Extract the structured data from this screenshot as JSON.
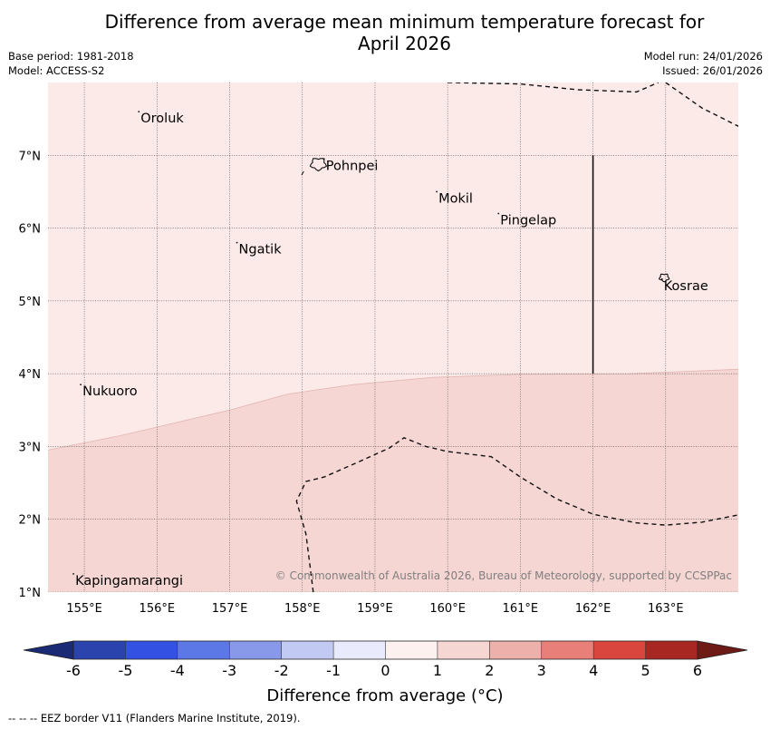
{
  "header": {
    "title_line1": "Difference from average mean minimum temperature forecast for",
    "title_line2": "April 2026",
    "base_period": "Base period: 1981-2018",
    "model": "Model: ACCESS-S2",
    "model_run": "Model run: 24/01/2026",
    "issued": "Issued: 26/01/2026"
  },
  "map": {
    "lon_range": [
      154.5,
      164.0
    ],
    "lat_range": [
      1.0,
      8.0
    ],
    "lat_labels": [
      {
        "lat": 7,
        "text": "7°N"
      },
      {
        "lat": 6,
        "text": "6°N"
      },
      {
        "lat": 5,
        "text": "5°N"
      },
      {
        "lat": 4,
        "text": "4°N"
      },
      {
        "lat": 3,
        "text": "3°N"
      },
      {
        "lat": 2,
        "text": "2°N"
      },
      {
        "lat": 1,
        "text": "1°N"
      }
    ],
    "lon_labels": [
      {
        "lon": 155,
        "text": "155°E"
      },
      {
        "lon": 156,
        "text": "156°E"
      },
      {
        "lon": 157,
        "text": "157°E"
      },
      {
        "lon": 158,
        "text": "158°E"
      },
      {
        "lon": 159,
        "text": "159°E"
      },
      {
        "lon": 160,
        "text": "160°E"
      },
      {
        "lon": 161,
        "text": "161°E"
      },
      {
        "lon": 162,
        "text": "162°E"
      },
      {
        "lon": 163,
        "text": "163°E"
      }
    ],
    "places": [
      {
        "name": "Oroluk",
        "lon": 155.75,
        "lat": 7.6
      },
      {
        "name": "Pohnpei",
        "lon": 158.3,
        "lat": 6.95
      },
      {
        "name": "Mokil",
        "lon": 159.85,
        "lat": 6.5
      },
      {
        "name": "Pingelap",
        "lon": 160.7,
        "lat": 6.2
      },
      {
        "name": "Ngatik",
        "lon": 157.1,
        "lat": 5.8
      },
      {
        "name": "Kosrae",
        "lon": 162.95,
        "lat": 5.3
      },
      {
        "name": "Nukuoro",
        "lon": 154.95,
        "lat": 3.85
      },
      {
        "name": "Kapingamarangi",
        "lon": 154.85,
        "lat": 1.25
      }
    ],
    "zones": [
      {
        "range": "0 to 1",
        "color": "#fbeae8"
      },
      {
        "range": "1 to 2",
        "color": "#f5d6d3"
      }
    ],
    "zone_boundary": [
      [
        154.5,
        2.95
      ],
      [
        155.5,
        3.15
      ],
      [
        157.0,
        3.5
      ],
      [
        157.8,
        3.72
      ],
      [
        158.7,
        3.85
      ],
      [
        159.8,
        3.95
      ],
      [
        161.0,
        3.99
      ],
      [
        162.5,
        4.0
      ],
      [
        164.0,
        4.06
      ]
    ],
    "eez_borders": [
      [
        [
          160.0,
          8.0
        ],
        [
          161.0,
          7.98
        ],
        [
          161.8,
          7.9
        ],
        [
          162.6,
          7.87
        ],
        [
          162.9,
          8.0
        ]
      ],
      [
        [
          163.0,
          8.0
        ],
        [
          163.5,
          7.65
        ],
        [
          164.0,
          7.4
        ]
      ],
      [
        [
          162.0,
          7.0
        ],
        [
          162.0,
          4.0
        ]
      ],
      [
        [
          158.15,
          1.0
        ],
        [
          158.1,
          1.4
        ],
        [
          158.05,
          1.8
        ],
        [
          157.92,
          2.25
        ],
        [
          158.05,
          2.52
        ],
        [
          158.3,
          2.58
        ],
        [
          158.8,
          2.8
        ],
        [
          159.2,
          2.98
        ],
        [
          159.4,
          3.12
        ],
        [
          159.7,
          3.0
        ],
        [
          160.0,
          2.93
        ],
        [
          160.6,
          2.86
        ],
        [
          161.0,
          2.58
        ],
        [
          161.5,
          2.28
        ],
        [
          162.0,
          2.07
        ],
        [
          162.6,
          1.95
        ],
        [
          163.0,
          1.92
        ],
        [
          163.5,
          1.96
        ],
        [
          164.0,
          2.06
        ]
      ]
    ],
    "copyright": "© Commonwealth of Australia 2026, Bureau of Meteorology, supported by CCSPPac"
  },
  "colorbar": {
    "label": "Difference from average (°C)",
    "ticks": [
      "-6",
      "-5",
      "-4",
      "-3",
      "-2",
      "-1",
      "0",
      "1",
      "2",
      "3",
      "4",
      "5",
      "6"
    ],
    "segment_colors": [
      "#2a43ad",
      "#3352e3",
      "#5c78e6",
      "#8999ea",
      "#c2c9f3",
      "#e9eafb",
      "#fdf1ef",
      "#f5d6d3",
      "#eeb0ab",
      "#e88079",
      "#d9463e",
      "#a82723"
    ],
    "under_color": "#1b2a74",
    "over_color": "#6e1a17"
  },
  "footer": {
    "eez_note": "--  --  -- EEZ border V11 (Flanders Marine Institute, 2019)."
  }
}
